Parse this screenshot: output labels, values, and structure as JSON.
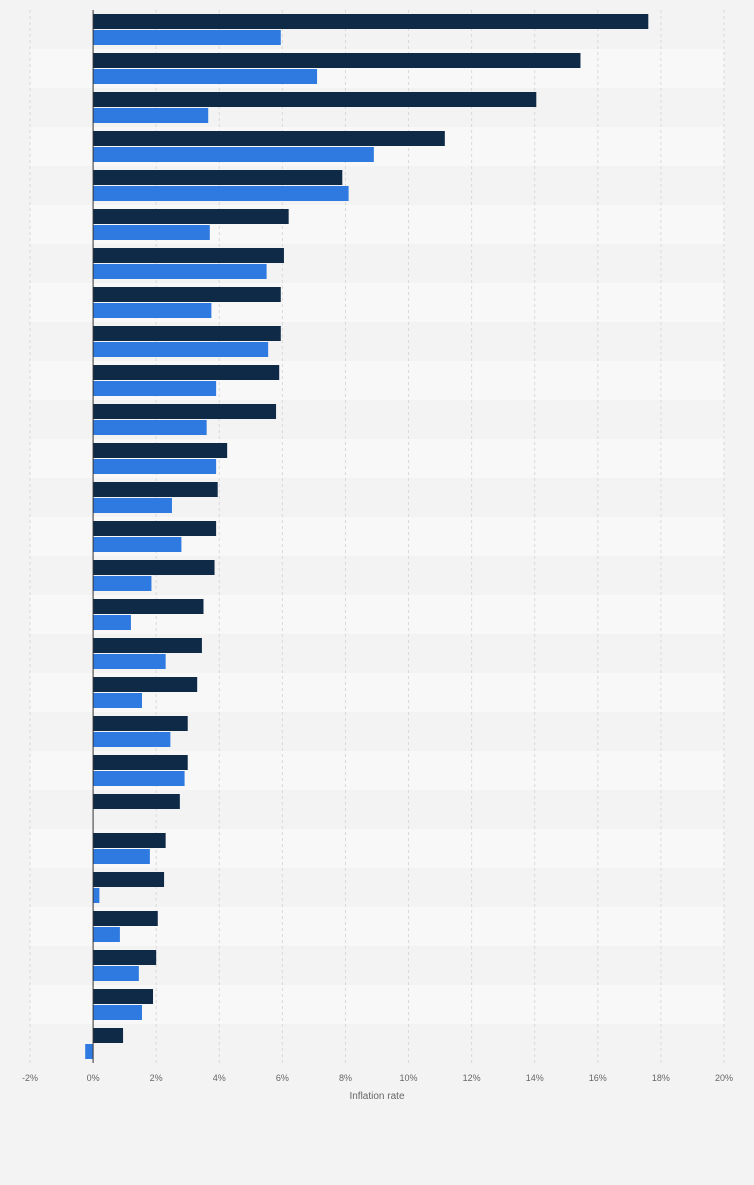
{
  "chart_data": {
    "type": "bar",
    "orientation": "horizontal",
    "xlabel": "Inflation rate",
    "xlim": [
      -2,
      20
    ],
    "xticks": [
      -2,
      0,
      2,
      4,
      6,
      8,
      10,
      12,
      14,
      16,
      18,
      20
    ],
    "tick_format": "{v}%",
    "grid": true,
    "legend": "none",
    "colors": {
      "series_1": "#0f2a47",
      "series_2": "#2f7ae0",
      "band": "#f3f3f4",
      "band_alt": "#f8f8f8",
      "grid": "#d9d9d9",
      "axis": "#333333",
      "text": "#666666"
    },
    "series": [
      {
        "values": [
          17.6,
          15.45,
          14.05,
          11.15,
          7.9,
          6.2,
          6.05,
          5.95,
          5.95,
          5.9,
          5.8,
          4.25,
          3.95,
          3.9,
          3.85,
          3.5,
          3.45,
          3.3,
          3.0,
          3.0,
          2.75,
          2.3,
          2.25,
          2.05,
          2.0,
          1.9,
          0.95
        ]
      },
      {
        "values": [
          5.95,
          7.1,
          3.65,
          8.9,
          8.1,
          3.7,
          5.5,
          3.75,
          5.55,
          3.9,
          3.6,
          3.9,
          2.5,
          2.8,
          1.85,
          1.2,
          2.3,
          1.55,
          2.45,
          2.9,
          null,
          1.8,
          0.2,
          0.85,
          1.45,
          1.55,
          -0.25
        ]
      }
    ]
  }
}
